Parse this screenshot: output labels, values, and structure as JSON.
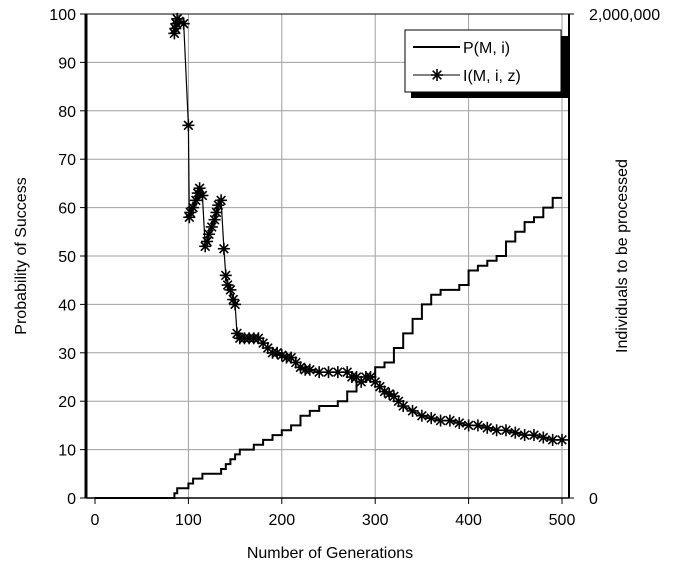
{
  "chart_data": {
    "type": "line",
    "xlabel": "Number of Generations",
    "ylabel": "Probability of Success",
    "y2label": "Individuals to be processed",
    "xlim": [
      0,
      500
    ],
    "ylim": [
      0,
      100
    ],
    "y2lim": [
      0,
      2000000
    ],
    "x_ticks": [
      "0",
      "100",
      "200",
      "300",
      "400",
      "500"
    ],
    "x_tick_values": [
      0,
      100,
      200,
      300,
      400,
      500
    ],
    "y_ticks": [
      "0",
      "10",
      "20",
      "30",
      "40",
      "50",
      "60",
      "70",
      "80",
      "90",
      "100"
    ],
    "y_tick_values": [
      0,
      10,
      20,
      30,
      40,
      50,
      60,
      70,
      80,
      90,
      100
    ],
    "y2_ticks": [
      "0",
      "2,000,000"
    ],
    "y2_tick_values": [
      0,
      2000000
    ],
    "grid": true,
    "legend_position": "top-right",
    "series": [
      {
        "name": "P(M, i)",
        "axis": "left",
        "marker": "none",
        "color": "#000000",
        "x": [
          0,
          80,
          85,
          88,
          90,
          95,
          100,
          105,
          110,
          115,
          120,
          125,
          130,
          135,
          140,
          145,
          150,
          155,
          160,
          170,
          180,
          190,
          200,
          210,
          220,
          230,
          240,
          250,
          260,
          270,
          280,
          290,
          300,
          310,
          320,
          330,
          340,
          350,
          360,
          370,
          380,
          390,
          400,
          410,
          420,
          430,
          440,
          450,
          460,
          470,
          480,
          490,
          500
        ],
        "values": [
          0,
          0,
          1,
          2,
          2,
          2,
          3,
          4,
          4,
          5,
          5,
          5,
          5,
          6,
          7,
          8,
          9,
          10,
          10,
          11,
          12,
          13,
          14,
          15,
          17,
          18,
          19,
          19,
          20,
          22,
          24,
          25,
          27,
          28,
          31,
          34,
          37,
          40,
          42,
          43,
          43,
          44,
          47,
          48,
          49,
          50,
          53,
          55,
          57,
          58,
          60,
          62,
          62
        ]
      },
      {
        "name": "I(M, i, z)",
        "axis": "right",
        "marker": "asterisk",
        "color": "#000000",
        "x": [
          85,
          86,
          87,
          88,
          90,
          95,
          100,
          101,
          102,
          105,
          108,
          110,
          112,
          115,
          118,
          120,
          122,
          125,
          128,
          130,
          132,
          135,
          138,
          140,
          142,
          145,
          148,
          150,
          152,
          155,
          160,
          165,
          170,
          175,
          180,
          185,
          190,
          195,
          200,
          205,
          210,
          215,
          220,
          225,
          230,
          240,
          250,
          260,
          270,
          275,
          280,
          285,
          290,
          295,
          300,
          305,
          310,
          315,
          320,
          325,
          330,
          340,
          350,
          360,
          370,
          380,
          390,
          400,
          410,
          420,
          430,
          440,
          450,
          460,
          470,
          480,
          490,
          500
        ],
        "values": [
          1920000,
          1940000,
          1960000,
          1980000,
          1970000,
          1960000,
          1540000,
          1160000,
          1180000,
          1200000,
          1230000,
          1260000,
          1280000,
          1250000,
          1040000,
          1060000,
          1090000,
          1120000,
          1150000,
          1180000,
          1210000,
          1230000,
          1030000,
          920000,
          880000,
          860000,
          820000,
          800000,
          680000,
          660000,
          660000,
          660000,
          660000,
          660000,
          640000,
          620000,
          600000,
          600000,
          590000,
          580000,
          580000,
          560000,
          540000,
          530000,
          530000,
          520000,
          520000,
          520000,
          520000,
          500000,
          500000,
          480000,
          500000,
          500000,
          480000,
          460000,
          440000,
          430000,
          420000,
          400000,
          380000,
          360000,
          340000,
          330000,
          320000,
          320000,
          310000,
          300000,
          300000,
          290000,
          280000,
          280000,
          270000,
          260000,
          260000,
          250000,
          240000,
          240000
        ]
      }
    ]
  }
}
